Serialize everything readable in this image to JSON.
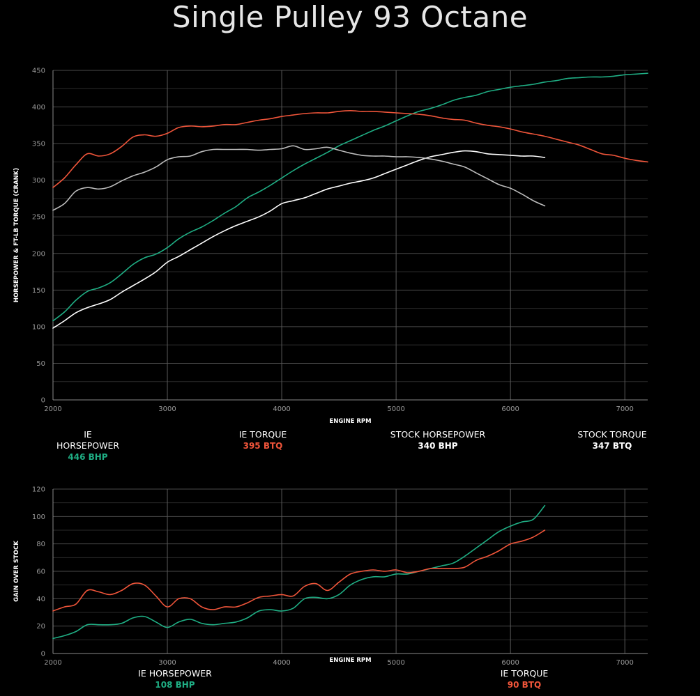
{
  "title": "Single Pulley 93 Octane",
  "colors": {
    "ie_hp": "#1fae84",
    "ie_tq": "#f0553a",
    "stock_hp": "#ffffff",
    "stock_tq": "#bdbdbd"
  },
  "legend_top": [
    {
      "name": "IE HORSEPOWER",
      "value": "446 BHP",
      "color": "#1fae84"
    },
    {
      "name": "IE TORQUE",
      "value": "395 BTQ",
      "color": "#f0553a"
    },
    {
      "name": "STOCK HORSEPOWER",
      "value": "340 BHP",
      "color": "#ffffff"
    },
    {
      "name": "STOCK TORQUE",
      "value": "347 BTQ",
      "color": "#ffffff"
    }
  ],
  "legend_bottom": [
    {
      "name": "IE HORSEPOWER",
      "value": "108 BHP",
      "color": "#1fae84"
    },
    {
      "name": "IE TORQUE",
      "value": "90 BTQ",
      "color": "#f0553a"
    }
  ],
  "chart_data": [
    {
      "type": "line",
      "xlabel": "ENGINE RPM",
      "ylabel": "HORSEPOWER & FT-LB TORQUE (CRANK)",
      "xlim": [
        2000,
        7200
      ],
      "ylim": [
        0,
        450
      ],
      "x_ticks": [
        2000,
        3000,
        4000,
        5000,
        6000,
        7000
      ],
      "y_ticks": [
        0,
        50,
        100,
        150,
        200,
        250,
        300,
        350,
        400,
        450
      ],
      "grid": true,
      "series": [
        {
          "key": "ie_hp",
          "color": "#1fae84",
          "x": [
            2000,
            2100,
            2200,
            2300,
            2400,
            2500,
            2600,
            2700,
            2800,
            2900,
            3000,
            3100,
            3200,
            3300,
            3400,
            3500,
            3600,
            3700,
            3800,
            3900,
            4000,
            4100,
            4200,
            4300,
            4400,
            4500,
            4600,
            4700,
            4800,
            4900,
            5000,
            5100,
            5200,
            5300,
            5400,
            5500,
            5600,
            5700,
            5800,
            5900,
            6000,
            6100,
            6200,
            6300,
            6400,
            6500,
            6600,
            6700,
            6800,
            6900,
            7000,
            7100,
            7200
          ],
          "y": [
            108,
            120,
            136,
            148,
            153,
            160,
            172,
            185,
            194,
            199,
            208,
            220,
            229,
            236,
            245,
            255,
            264,
            276,
            284,
            293,
            303,
            313,
            322,
            330,
            338,
            347,
            354,
            361,
            368,
            374,
            381,
            388,
            394,
            398,
            403,
            409,
            413,
            416,
            421,
            424,
            427,
            429,
            431,
            434,
            436,
            439,
            440,
            441,
            441,
            442,
            444,
            445,
            446
          ]
        },
        {
          "key": "ie_tq",
          "color": "#f0553a",
          "x": [
            2000,
            2100,
            2200,
            2300,
            2400,
            2500,
            2600,
            2700,
            2800,
            2900,
            3000,
            3100,
            3200,
            3300,
            3400,
            3500,
            3600,
            3700,
            3800,
            3900,
            4000,
            4100,
            4200,
            4300,
            4400,
            4500,
            4600,
            4700,
            4800,
            4900,
            5000,
            5100,
            5200,
            5300,
            5400,
            5500,
            5600,
            5700,
            5800,
            5900,
            6000,
            6100,
            6200,
            6300,
            6400,
            6500,
            6600,
            6700,
            6800,
            6900,
            7000,
            7100,
            7200
          ],
          "y": [
            290,
            303,
            321,
            336,
            333,
            336,
            346,
            359,
            362,
            360,
            364,
            372,
            374,
            373,
            374,
            376,
            376,
            379,
            382,
            384,
            387,
            389,
            391,
            392,
            392,
            394,
            395,
            394,
            394,
            393,
            392,
            391,
            390,
            388,
            385,
            383,
            382,
            378,
            375,
            373,
            370,
            366,
            363,
            360,
            356,
            352,
            348,
            342,
            336,
            334,
            330,
            327,
            325
          ]
        },
        {
          "key": "stock_hp",
          "color": "#ffffff",
          "x": [
            2000,
            2100,
            2200,
            2300,
            2400,
            2500,
            2600,
            2700,
            2800,
            2900,
            3000,
            3100,
            3200,
            3300,
            3400,
            3500,
            3600,
            3700,
            3800,
            3900,
            4000,
            4100,
            4200,
            4300,
            4400,
            4500,
            4600,
            4700,
            4800,
            4900,
            5000,
            5100,
            5200,
            5300,
            5400,
            5500,
            5600,
            5700,
            5800,
            5900,
            6000,
            6100,
            6200,
            6300
          ],
          "y": [
            98,
            108,
            119,
            126,
            131,
            137,
            147,
            156,
            165,
            175,
            188,
            196,
            205,
            214,
            223,
            231,
            238,
            244,
            250,
            258,
            268,
            272,
            276,
            282,
            288,
            292,
            296,
            299,
            303,
            309,
            315,
            321,
            327,
            332,
            335,
            338,
            340,
            339,
            336,
            335,
            334,
            333,
            333,
            331
          ]
        },
        {
          "key": "stock_tq",
          "color": "#bdbdbd",
          "x": [
            2000,
            2100,
            2200,
            2300,
            2400,
            2500,
            2600,
            2700,
            2800,
            2900,
            3000,
            3100,
            3200,
            3300,
            3400,
            3500,
            3600,
            3700,
            3800,
            3900,
            4000,
            4100,
            4200,
            4300,
            4400,
            4500,
            4600,
            4700,
            4800,
            4900,
            5000,
            5100,
            5200,
            5300,
            5400,
            5500,
            5600,
            5700,
            5800,
            5900,
            6000,
            6100,
            6200,
            6300
          ],
          "y": [
            259,
            268,
            285,
            290,
            288,
            291,
            299,
            306,
            311,
            318,
            328,
            332,
            333,
            339,
            342,
            342,
            342,
            342,
            341,
            342,
            343,
            347,
            342,
            343,
            345,
            341,
            337,
            334,
            333,
            333,
            332,
            332,
            331,
            329,
            326,
            322,
            318,
            310,
            302,
            294,
            289,
            281,
            272,
            265
          ]
        }
      ]
    },
    {
      "type": "line",
      "xlabel": "ENGINE RPM",
      "ylabel": "GAIN OVER STOCK",
      "xlim": [
        2000,
        7200
      ],
      "ylim": [
        0,
        120
      ],
      "x_ticks": [
        2000,
        3000,
        4000,
        5000,
        6000,
        7000
      ],
      "y_ticks": [
        0,
        20,
        40,
        60,
        80,
        100,
        120
      ],
      "grid": true,
      "series": [
        {
          "key": "gain_hp",
          "color": "#1fae84",
          "x": [
            2000,
            2100,
            2200,
            2300,
            2400,
            2500,
            2600,
            2700,
            2800,
            2900,
            3000,
            3100,
            3200,
            3300,
            3400,
            3500,
            3600,
            3700,
            3800,
            3900,
            4000,
            4100,
            4200,
            4300,
            4400,
            4500,
            4600,
            4700,
            4800,
            4900,
            5000,
            5100,
            5200,
            5300,
            5400,
            5500,
            5600,
            5700,
            5800,
            5900,
            6000,
            6100,
            6200,
            6300
          ],
          "y": [
            11,
            13,
            16,
            21,
            21,
            21,
            22,
            26,
            27,
            23,
            19,
            23,
            25,
            22,
            21,
            22,
            23,
            26,
            31,
            32,
            31,
            33,
            40,
            41,
            40,
            43,
            50,
            54,
            56,
            56,
            58,
            58,
            60,
            62,
            64,
            66,
            71,
            77,
            83,
            89,
            93,
            96,
            98,
            108
          ]
        },
        {
          "key": "gain_tq",
          "color": "#f0553a",
          "x": [
            2000,
            2100,
            2200,
            2300,
            2400,
            2500,
            2600,
            2700,
            2800,
            2900,
            3000,
            3100,
            3200,
            3300,
            3400,
            3500,
            3600,
            3700,
            3800,
            3900,
            4000,
            4100,
            4200,
            4300,
            4400,
            4500,
            4600,
            4700,
            4800,
            4900,
            5000,
            5100,
            5200,
            5300,
            5400,
            5500,
            5600,
            5700,
            5800,
            5900,
            6000,
            6100,
            6200,
            6300
          ],
          "y": [
            31,
            34,
            36,
            46,
            45,
            43,
            46,
            51,
            50,
            42,
            34,
            40,
            40,
            34,
            32,
            34,
            34,
            37,
            41,
            42,
            43,
            42,
            49,
            51,
            46,
            52,
            58,
            60,
            61,
            60,
            61,
            59,
            60,
            62,
            62,
            62,
            63,
            68,
            71,
            75,
            80,
            82,
            85,
            90
          ]
        }
      ]
    }
  ]
}
